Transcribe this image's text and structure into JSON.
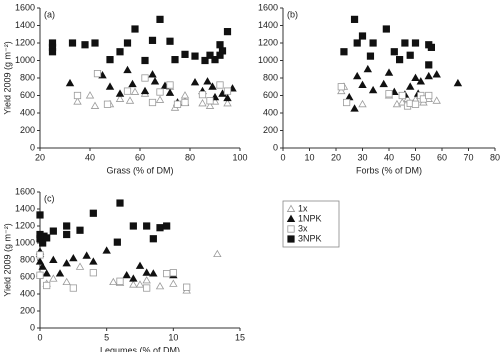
{
  "chart_data": [
    {
      "type": "scatter",
      "label": "(a)",
      "x_label": "Grass (% of DM)",
      "y_label": "Yield 2009 (g m⁻²)",
      "xlim": [
        20,
        100
      ],
      "xticks": [
        20,
        40,
        60,
        80,
        100
      ],
      "ylim": [
        0,
        1600
      ],
      "yticks": [
        0,
        200,
        400,
        600,
        800,
        1000,
        1200,
        1400,
        1600
      ],
      "series": [
        {
          "marker": "triangle",
          "filled": false,
          "color": "#9a9a9a",
          "x": [
            35,
            40,
            42,
            48,
            52,
            56,
            58,
            62,
            68,
            72,
            74,
            78,
            85,
            88,
            90,
            93,
            95
          ],
          "values": [
            530,
            600,
            480,
            500,
            560,
            540,
            640,
            620,
            550,
            700,
            460,
            600,
            510,
            480,
            530,
            620,
            510
          ]
        },
        {
          "marker": "triangle",
          "filled": true,
          "color": "#111111",
          "x": [
            32,
            45,
            48,
            52,
            55,
            57,
            62,
            65,
            66,
            70,
            72,
            75,
            78,
            82,
            85,
            87,
            89,
            90,
            93,
            95,
            97
          ],
          "values": [
            740,
            830,
            700,
            620,
            890,
            730,
            650,
            840,
            760,
            710,
            630,
            520,
            520,
            750,
            650,
            760,
            700,
            580,
            620,
            570,
            680
          ]
        },
        {
          "marker": "square",
          "filled": false,
          "color": "#9a9a9a",
          "x": [
            35,
            43,
            47,
            55,
            62,
            65,
            68,
            72,
            75,
            78,
            85,
            88,
            92,
            95
          ],
          "values": [
            600,
            850,
            500,
            650,
            800,
            520,
            640,
            720,
            500,
            520,
            610,
            540,
            720,
            650
          ]
        },
        {
          "marker": "square",
          "filled": true,
          "color": "#111111",
          "x": [
            25,
            25,
            25,
            33,
            38,
            42,
            48,
            52,
            55,
            58,
            62,
            65,
            68,
            72,
            74,
            78,
            82,
            86,
            88,
            90,
            92,
            93,
            95,
            92
          ],
          "values": [
            1200,
            1150,
            1100,
            1200,
            1180,
            1200,
            1010,
            1100,
            1200,
            1360,
            1000,
            1230,
            1470,
            1220,
            1010,
            1070,
            1050,
            1000,
            1060,
            1010,
            1180,
            1110,
            1330,
            1060
          ]
        }
      ]
    },
    {
      "type": "scatter",
      "label": "(b)",
      "x_label": "Forbs (% of DM)",
      "xlim": [
        0,
        80
      ],
      "xticks": [
        0,
        10,
        20,
        30,
        40,
        50,
        60,
        70,
        80
      ],
      "ylim": [
        0,
        1600
      ],
      "yticks": [
        0,
        200,
        400,
        600,
        800,
        1000,
        1200,
        1400,
        1600
      ],
      "series": [
        {
          "marker": "triangle",
          "filled": false,
          "color": "#9a9a9a",
          "x": [
            22,
            23,
            30,
            40,
            43,
            45,
            47,
            50,
            53,
            55,
            58
          ],
          "values": [
            650,
            700,
            500,
            600,
            500,
            520,
            560,
            550,
            520,
            560,
            540
          ]
        },
        {
          "marker": "triangle",
          "filled": true,
          "color": "#111111",
          "x": [
            25,
            27,
            28,
            30,
            32,
            34,
            38,
            40,
            42,
            46,
            48,
            50,
            52,
            55,
            58,
            66,
            51
          ],
          "values": [
            580,
            450,
            820,
            720,
            900,
            660,
            730,
            860,
            640,
            610,
            700,
            800,
            760,
            820,
            840,
            740,
            620
          ]
        },
        {
          "marker": "square",
          "filled": false,
          "color": "#9a9a9a",
          "x": [
            22,
            24,
            40,
            45,
            47,
            48,
            50,
            52,
            53,
            55
          ],
          "values": [
            700,
            520,
            620,
            600,
            480,
            510,
            500,
            600,
            560,
            600
          ]
        },
        {
          "marker": "square",
          "filled": true,
          "color": "#111111",
          "x": [
            23,
            27,
            28,
            30,
            34,
            39,
            42,
            44,
            46,
            50,
            55,
            56,
            55,
            33,
            48
          ],
          "values": [
            1100,
            1470,
            1200,
            1280,
            1200,
            1360,
            1100,
            1010,
            1200,
            1200,
            1180,
            1150,
            950,
            1050,
            1060
          ]
        }
      ]
    },
    {
      "type": "scatter",
      "label": "(c)",
      "x_label": "Legumes (% of DM)",
      "y_label": "Yield 2009 (g m⁻²)",
      "xlim": [
        0,
        15
      ],
      "xticks": [
        0,
        5,
        10,
        15
      ],
      "ylim": [
        0,
        1600
      ],
      "yticks": [
        0,
        200,
        400,
        600,
        800,
        1000,
        1200,
        1400,
        1600
      ],
      "legend": true,
      "series": [
        {
          "name": "1x",
          "marker": "triangle",
          "filled": false,
          "color": "#9a9a9a",
          "x": [
            0,
            0.5,
            1,
            2,
            3,
            5.5,
            6,
            7,
            7.5,
            8,
            9,
            10,
            11,
            13.3
          ],
          "values": [
            640,
            520,
            580,
            540,
            720,
            540,
            530,
            510,
            510,
            560,
            490,
            520,
            440,
            870
          ]
        },
        {
          "name": "1NPK",
          "marker": "triangle",
          "filled": true,
          "color": "#111111",
          "x": [
            0,
            0,
            0,
            0.2,
            0.5,
            1,
            1.5,
            2,
            2.5,
            3.5,
            4,
            5,
            6.5,
            7,
            7.5,
            8,
            8.5,
            10
          ],
          "values": [
            900,
            870,
            780,
            720,
            640,
            800,
            640,
            760,
            820,
            850,
            780,
            910,
            620,
            580,
            730,
            650,
            640,
            620
          ]
        },
        {
          "name": "3x",
          "marker": "square",
          "filled": false,
          "color": "#9a9a9a",
          "x": [
            0,
            0,
            0.5,
            2.5,
            4,
            6,
            8,
            9.5,
            10,
            11
          ],
          "values": [
            860,
            620,
            500,
            470,
            650,
            550,
            470,
            640,
            650,
            480
          ]
        },
        {
          "name": "3NPK",
          "marker": "square",
          "filled": true,
          "color": "#111111",
          "x": [
            0,
            0,
            0,
            0.2,
            0.3,
            0.5,
            1,
            2,
            2,
            3,
            4,
            5.8,
            6,
            7,
            8,
            8.5,
            9,
            9.5
          ],
          "values": [
            1330,
            1100,
            1050,
            1000,
            1080,
            1060,
            1140,
            1200,
            1100,
            1150,
            1350,
            1010,
            1470,
            1200,
            1200,
            1050,
            1180,
            1200
          ]
        }
      ]
    }
  ]
}
